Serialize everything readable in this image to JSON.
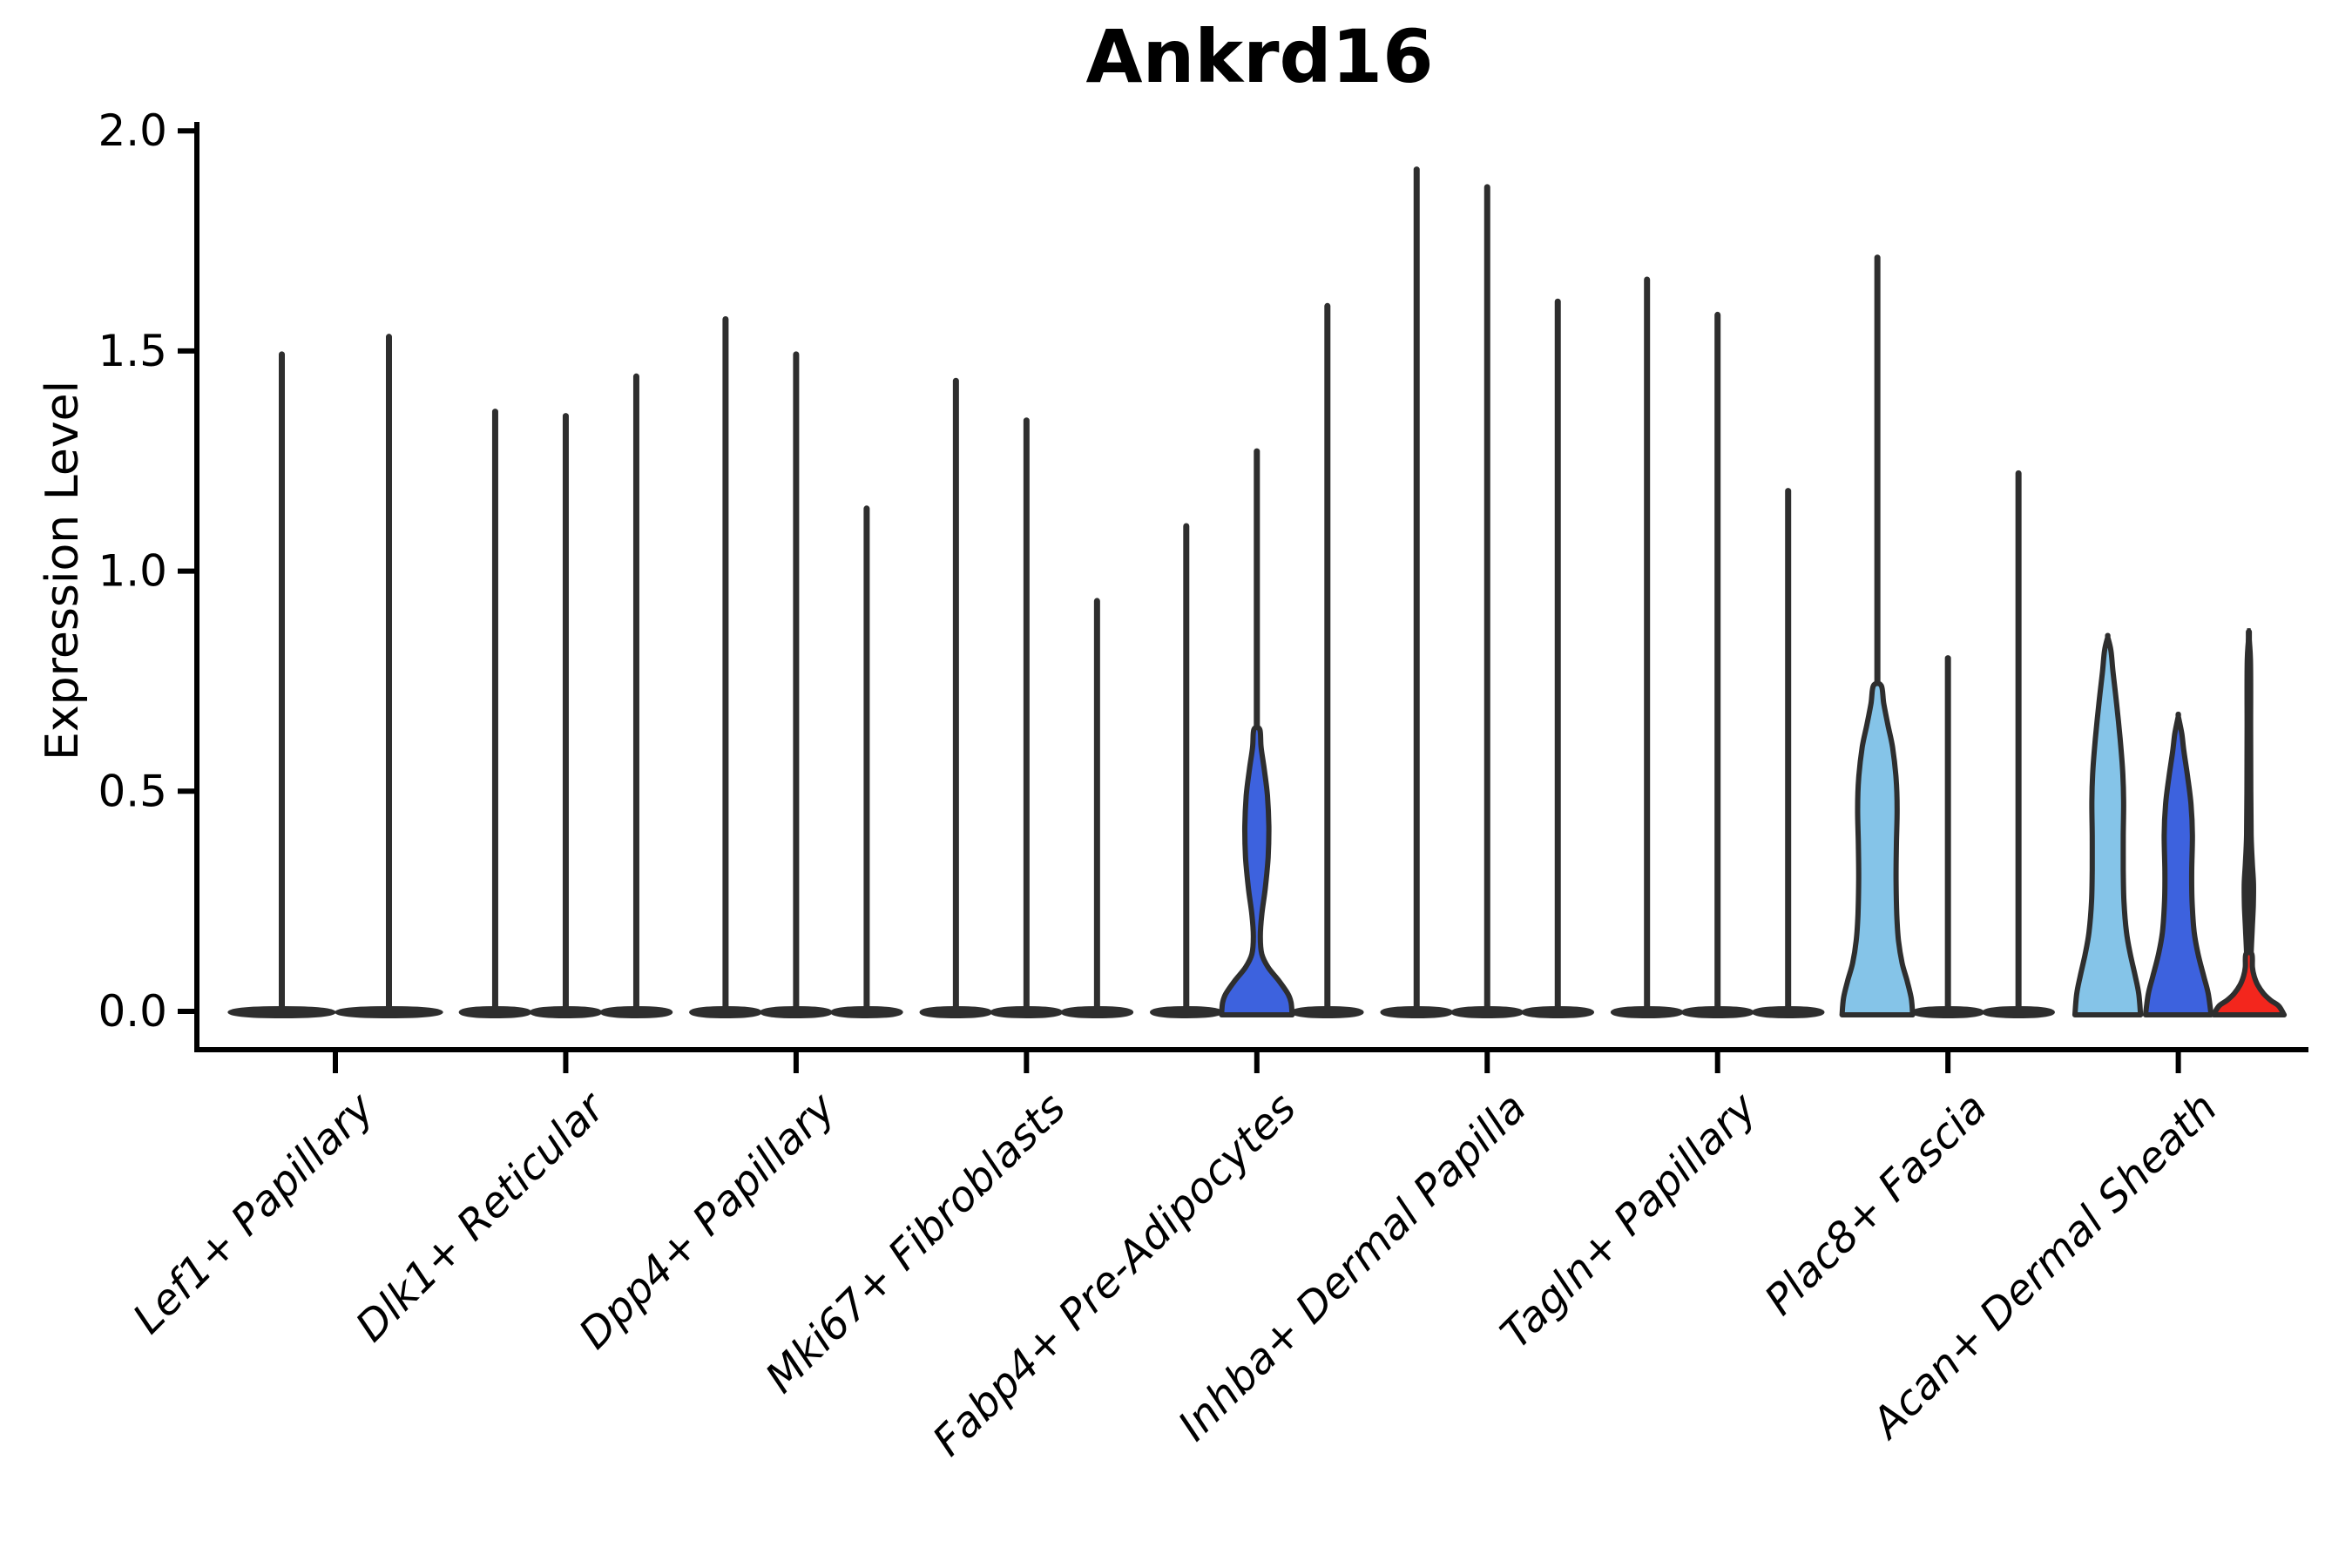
{
  "title": "Ankrd16",
  "axes": {
    "ylabel": "Expression Level",
    "ytick_labels": [
      "0.0",
      "0.5",
      "1.0",
      "1.5",
      "2.0"
    ]
  },
  "palette": {
    "plain": "#2E2E2E",
    "lightblue": "#85C4E8",
    "blue": "#3D62DE",
    "red": "#F3261D",
    "edge": "#2E2E2E",
    "axis": "#000000"
  },
  "chart_data": {
    "type": "violin",
    "title": "Ankrd16",
    "xlabel": "",
    "ylabel": "Expression Level",
    "ylim": [
      0.0,
      2.0
    ],
    "yticks": [
      0.0,
      0.5,
      1.0,
      1.5,
      2.0
    ],
    "grid": false,
    "legend": "none",
    "categories": [
      "Lef1+ Papillary",
      "Dlk1+ Reticular",
      "Dpp4+ Papillary",
      "Mki67+ Fibroblasts",
      "Fabp4+ Pre-Adipocytes",
      "Inhba+ Dermal Papilla",
      "Tagln+ Papillary",
      "Plac8+ Fascia",
      "Acan+ Dermal Sheath"
    ],
    "groups": [
      {
        "category": "Lef1+ Papillary",
        "violins": [
          {
            "max": 1.5,
            "color": "plain",
            "shape": "spike"
          },
          {
            "max": 1.54,
            "color": "plain",
            "shape": "spike"
          }
        ]
      },
      {
        "category": "Dlk1+ Reticular",
        "violins": [
          {
            "max": 1.37,
            "color": "plain",
            "shape": "spike"
          },
          {
            "max": 1.36,
            "color": "plain",
            "shape": "spike"
          },
          {
            "max": 1.45,
            "color": "plain",
            "shape": "spike"
          }
        ]
      },
      {
        "category": "Dpp4+ Papillary",
        "violins": [
          {
            "max": 1.58,
            "color": "plain",
            "shape": "spike"
          },
          {
            "max": 1.5,
            "color": "plain",
            "shape": "spike"
          },
          {
            "max": 1.15,
            "color": "plain",
            "shape": "spike"
          }
        ]
      },
      {
        "category": "Mki67+ Fibroblasts",
        "violins": [
          {
            "max": 1.44,
            "color": "plain",
            "shape": "spike"
          },
          {
            "max": 1.35,
            "color": "plain",
            "shape": "spike"
          },
          {
            "max": 0.94,
            "color": "plain",
            "shape": "spike"
          }
        ]
      },
      {
        "category": "Fabp4+ Pre-Adipocytes",
        "violins": [
          {
            "max": 1.11,
            "color": "plain",
            "shape": "spike"
          },
          {
            "max": 1.28,
            "color": "blue",
            "shape": "body+spike",
            "profile": [
              [
                0,
                1.0
              ],
              [
                0.02,
                0.97
              ],
              [
                0.04,
                0.88
              ],
              [
                0.07,
                0.62
              ],
              [
                0.1,
                0.32
              ],
              [
                0.13,
                0.14
              ],
              [
                0.17,
                0.1
              ],
              [
                0.22,
                0.14
              ],
              [
                0.28,
                0.24
              ],
              [
                0.35,
                0.32
              ],
              [
                0.42,
                0.34
              ],
              [
                0.49,
                0.3
              ],
              [
                0.55,
                0.21
              ],
              [
                0.6,
                0.12
              ],
              [
                0.64,
                0.085
              ]
            ]
          },
          {
            "max": 1.61,
            "color": "plain",
            "shape": "spike"
          }
        ]
      },
      {
        "category": "Inhba+ Dermal Papilla",
        "violins": [
          {
            "max": 1.92,
            "color": "plain",
            "shape": "spike"
          },
          {
            "max": 1.88,
            "color": "plain",
            "shape": "spike"
          },
          {
            "max": 1.62,
            "color": "plain",
            "shape": "spike"
          }
        ]
      },
      {
        "category": "Tagln+ Papillary",
        "violins": [
          {
            "max": 1.67,
            "color": "plain",
            "shape": "spike"
          },
          {
            "max": 1.59,
            "color": "plain",
            "shape": "spike"
          },
          {
            "max": 1.19,
            "color": "plain",
            "shape": "spike"
          }
        ]
      },
      {
        "category": "Plac8+ Fascia",
        "violins": [
          {
            "max": 1.72,
            "color": "lightblue",
            "shape": "body+spike",
            "profile": [
              [
                0,
                1.0
              ],
              [
                0.03,
                0.96
              ],
              [
                0.07,
                0.84
              ],
              [
                0.11,
                0.7
              ],
              [
                0.16,
                0.6
              ],
              [
                0.22,
                0.55
              ],
              [
                0.3,
                0.53
              ],
              [
                0.38,
                0.54
              ],
              [
                0.46,
                0.56
              ],
              [
                0.53,
                0.53
              ],
              [
                0.6,
                0.43
              ],
              [
                0.65,
                0.3
              ],
              [
                0.7,
                0.18
              ],
              [
                0.74,
                0.11
              ]
            ]
          },
          {
            "max": 0.81,
            "color": "plain",
            "shape": "spike"
          },
          {
            "max": 1.23,
            "color": "plain",
            "shape": "spike"
          }
        ]
      },
      {
        "category": "Acan+ Dermal Sheath",
        "violins": [
          {
            "max": 0.85,
            "color": "lightblue",
            "shape": "capped-body",
            "profile": [
              [
                0,
                0.93
              ],
              [
                0.04,
                0.88
              ],
              [
                0.08,
                0.78
              ],
              [
                0.13,
                0.64
              ],
              [
                0.18,
                0.53
              ],
              [
                0.25,
                0.46
              ],
              [
                0.32,
                0.44
              ],
              [
                0.4,
                0.44
              ],
              [
                0.48,
                0.45
              ],
              [
                0.55,
                0.42
              ],
              [
                0.62,
                0.35
              ],
              [
                0.7,
                0.25
              ],
              [
                0.77,
                0.15
              ],
              [
                0.82,
                0.09
              ],
              [
                0.85,
                0.0
              ]
            ]
          },
          {
            "max": 0.67,
            "color": "blue",
            "shape": "capped-body",
            "profile": [
              [
                0,
                0.93
              ],
              [
                0.04,
                0.85
              ],
              [
                0.08,
                0.72
              ],
              [
                0.13,
                0.56
              ],
              [
                0.18,
                0.45
              ],
              [
                0.25,
                0.39
              ],
              [
                0.32,
                0.38
              ],
              [
                0.4,
                0.4
              ],
              [
                0.47,
                0.36
              ],
              [
                0.53,
                0.27
              ],
              [
                0.59,
                0.16
              ],
              [
                0.63,
                0.1
              ],
              [
                0.67,
                0.0
              ]
            ]
          },
          {
            "max": 0.87,
            "color": "red",
            "shape": "mound+spike",
            "profile": [
              [
                0,
                1.0
              ],
              [
                0.012,
                0.85
              ],
              [
                0.025,
                0.62
              ],
              [
                0.04,
                0.42
              ],
              [
                0.06,
                0.25
              ],
              [
                0.08,
                0.15
              ],
              [
                0.1,
                0.1
              ],
              [
                0.13,
                0.085
              ]
            ],
            "dark_overlay": [
              [
                0.05,
                0.075
              ],
              [
                0.12,
                0.085
              ],
              [
                0.18,
                0.115
              ],
              [
                0.24,
                0.15
              ],
              [
                0.29,
                0.155
              ],
              [
                0.34,
                0.12
              ],
              [
                0.4,
                0.09
              ],
              [
                0.5,
                0.08
              ],
              [
                0.65,
                0.075
              ],
              [
                0.8,
                0.07
              ],
              [
                0.87,
                0.0
              ]
            ]
          }
        ]
      }
    ]
  }
}
